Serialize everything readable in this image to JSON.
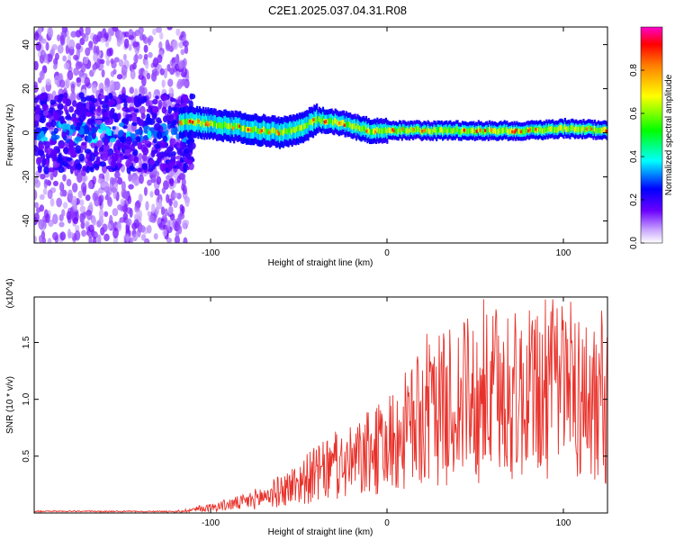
{
  "title": "C2E1.2025.037.04.31.R08",
  "chart_data": [
    {
      "type": "heatmap",
      "xlabel": "Height of straight line (km)",
      "ylabel": "Frequency (Hz)",
      "xlim": [
        -200,
        125
      ],
      "ylim": [
        -50,
        48
      ],
      "x_ticks": [
        -100,
        0,
        100
      ],
      "x_tick_labels": [
        "-100",
        "0",
        "100"
      ],
      "y_ticks": [
        -40,
        -20,
        0,
        20,
        40
      ],
      "y_tick_labels": [
        "-40",
        "-20",
        "0",
        "20",
        "40"
      ],
      "colorbar": {
        "label": "Normalized spectral amplitude",
        "range": [
          0,
          1
        ],
        "ticks": [
          0,
          0.2,
          0.4,
          0.6,
          0.8
        ],
        "tick_labels": [
          "0.0",
          "0.2",
          "0.4",
          "0.6",
          "0.8"
        ],
        "colormap": "rainbow"
      },
      "ridge": {
        "x": [
          -200,
          -150,
          -113,
          -100,
          -80,
          -60,
          -50,
          -40,
          -30,
          -20,
          -10,
          0,
          20,
          50,
          80,
          100,
          125
        ],
        "freq": [
          0,
          0,
          5,
          4,
          2,
          0,
          2,
          6,
          5,
          3,
          1,
          1,
          1,
          1,
          1,
          2,
          1
        ]
      }
    },
    {
      "type": "line",
      "xlabel": "Height of straight line (km)",
      "ylabel": "SNR (10 * v/v)",
      "y_scale_note": "(x10^4)",
      "xlim": [
        -200,
        125
      ],
      "ylim": [
        0,
        1.9
      ],
      "x_ticks": [
        -100,
        0,
        100
      ],
      "x_tick_labels": [
        "-100",
        "0",
        "100"
      ],
      "y_ticks": [
        0.5,
        1.0,
        1.5
      ],
      "y_tick_labels": [
        "0.5",
        "1.0",
        "1.5"
      ],
      "line_color": "#e8312a",
      "envelope": {
        "x": [
          -200,
          -120,
          -100,
          -80,
          -60,
          -40,
          -20,
          0,
          20,
          40,
          60,
          80,
          100,
          125
        ],
        "y": [
          0.01,
          0.01,
          0.05,
          0.1,
          0.2,
          0.35,
          0.45,
          0.6,
          0.85,
          1.0,
          1.05,
          1.05,
          1.1,
          0.95
        ]
      }
    }
  ]
}
